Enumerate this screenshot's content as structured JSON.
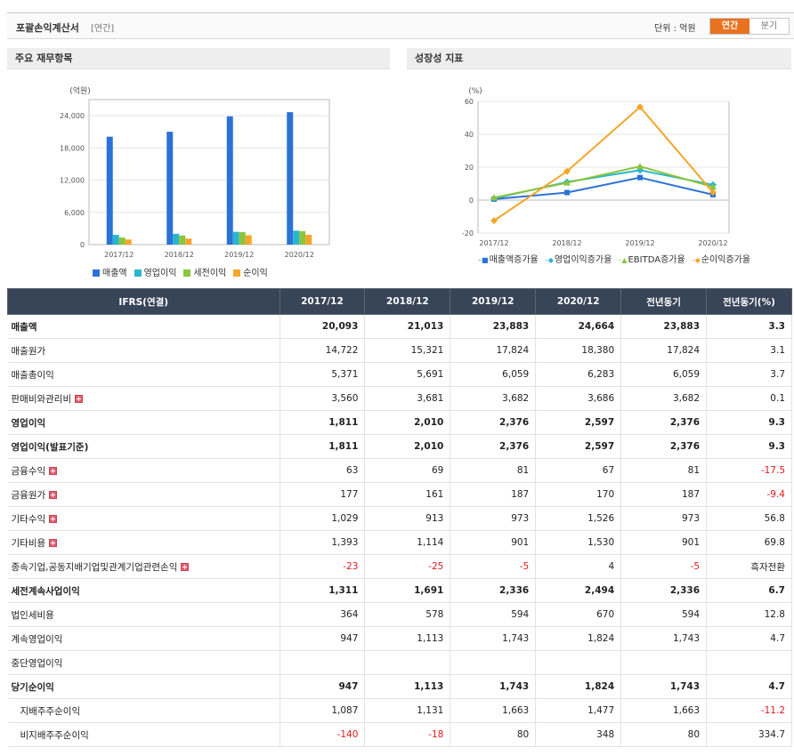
{
  "header": {
    "title": "포괄손익계산서",
    "sub": "[연간]",
    "unit": "단위 : 억원",
    "tab_annual": "연간",
    "tab_quarter": "분기"
  },
  "panels": {
    "left_title": "주요 재무항목",
    "right_title": "성장성 지표"
  },
  "chart_data": [
    {
      "type": "bar",
      "title": "",
      "ylabel": "(억원)",
      "ylim": [
        0,
        27000
      ],
      "yticks": [
        "0",
        "6,000",
        "12,000",
        "18,000",
        "24,000"
      ],
      "categories": [
        "2017/12",
        "2018/12",
        "2019/12",
        "2020/12"
      ],
      "series": [
        {
          "name": "매출액",
          "color": "#2b72d6",
          "values": [
            20093,
            21013,
            23883,
            24664
          ]
        },
        {
          "name": "영업이익",
          "color": "#27b6cc",
          "values": [
            1811,
            2010,
            2376,
            2597
          ]
        },
        {
          "name": "세전이익",
          "color": "#8cc43c",
          "values": [
            1311,
            1691,
            2336,
            2494
          ]
        },
        {
          "name": "순이익",
          "color": "#f4a52a",
          "values": [
            947,
            1113,
            1743,
            1824
          ]
        }
      ],
      "legend": "bottom"
    },
    {
      "type": "line",
      "title": "",
      "ylabel": "(%)",
      "ylim": [
        -20,
        60
      ],
      "yticks": [
        "-20",
        "0",
        "20",
        "40",
        "60"
      ],
      "categories": [
        "2017/12",
        "2018/12",
        "2019/12",
        "2020/12"
      ],
      "series": [
        {
          "name": "매출액증가율",
          "color": "#2b72d6",
          "marker": "square",
          "values": [
            0.6,
            4.6,
            13.7,
            3.3
          ]
        },
        {
          "name": "영업이익증가율",
          "color": "#27b6cc",
          "marker": "diamond",
          "values": [
            1.0,
            11.0,
            18.2,
            9.3
          ]
        },
        {
          "name": "EBITDA증가율",
          "color": "#8cc43c",
          "marker": "triangle",
          "values": [
            1.5,
            10.5,
            20.5,
            8.0
          ]
        },
        {
          "name": "순이익증가율",
          "color": "#f4a52a",
          "marker": "diamond",
          "values": [
            -12.5,
            17.5,
            56.6,
            4.7
          ]
        }
      ],
      "legend": "bottom"
    }
  ],
  "table": {
    "headers": [
      "IFRS(연결)",
      "2017/12",
      "2018/12",
      "2019/12",
      "2020/12",
      "전년동기",
      "전년동기(%)"
    ],
    "rows": [
      {
        "label": "매출액",
        "bold": true,
        "values": [
          "20,093",
          "21,013",
          "23,883",
          "24,664",
          "23,883",
          "3.3"
        ]
      },
      {
        "label": "매출원가",
        "values": [
          "14,722",
          "15,321",
          "17,824",
          "18,380",
          "17,824",
          "3.1"
        ]
      },
      {
        "label": "매출총이익",
        "values": [
          "5,371",
          "5,691",
          "6,059",
          "6,283",
          "6,059",
          "3.7"
        ]
      },
      {
        "label": "판매비와관리비",
        "expand": true,
        "values": [
          "3,560",
          "3,681",
          "3,682",
          "3,686",
          "3,682",
          "0.1"
        ]
      },
      {
        "label": "영업이익",
        "bold": true,
        "values": [
          "1,811",
          "2,010",
          "2,376",
          "2,597",
          "2,376",
          "9.3"
        ]
      },
      {
        "label": "영업이익(발표기준)",
        "bold": true,
        "values": [
          "1,811",
          "2,010",
          "2,376",
          "2,597",
          "2,376",
          "9.3"
        ]
      },
      {
        "label": "금융수익",
        "expand": true,
        "values": [
          "63",
          "69",
          "81",
          "67",
          "81",
          "-17.5"
        ]
      },
      {
        "label": "금융원가",
        "expand": true,
        "values": [
          "177",
          "161",
          "187",
          "170",
          "187",
          "-9.4"
        ]
      },
      {
        "label": "기타수익",
        "expand": true,
        "values": [
          "1,029",
          "913",
          "973",
          "1,526",
          "973",
          "56.8"
        ]
      },
      {
        "label": "기타비용",
        "expand": true,
        "values": [
          "1,393",
          "1,114",
          "901",
          "1,530",
          "901",
          "69.8"
        ]
      },
      {
        "label": "종속기업,공동지배기업및관계기업관련손익",
        "expand": true,
        "values": [
          "-23",
          "-25",
          "-5",
          "4",
          "-5",
          "흑자전환"
        ]
      },
      {
        "label": "세전계속사업이익",
        "bold": true,
        "values": [
          "1,311",
          "1,691",
          "2,336",
          "2,494",
          "2,336",
          "6.7"
        ]
      },
      {
        "label": "법인세비용",
        "values": [
          "364",
          "578",
          "594",
          "670",
          "594",
          "12.8"
        ]
      },
      {
        "label": "계속영업이익",
        "values": [
          "947",
          "1,113",
          "1,743",
          "1,824",
          "1,743",
          "4.7"
        ]
      },
      {
        "label": "중단영업이익",
        "values": [
          "",
          "",
          "",
          "",
          "",
          ""
        ]
      },
      {
        "label": "당기순이익",
        "bold": true,
        "values": [
          "947",
          "1,113",
          "1,743",
          "1,824",
          "1,743",
          "4.7"
        ]
      },
      {
        "label": "지배주주순이익",
        "indent": true,
        "values": [
          "1,087",
          "1,131",
          "1,663",
          "1,477",
          "1,663",
          "-11.2"
        ]
      },
      {
        "label": "비지배주주순이익",
        "indent": true,
        "values": [
          "-140",
          "-18",
          "80",
          "348",
          "80",
          "334.7"
        ]
      }
    ]
  }
}
